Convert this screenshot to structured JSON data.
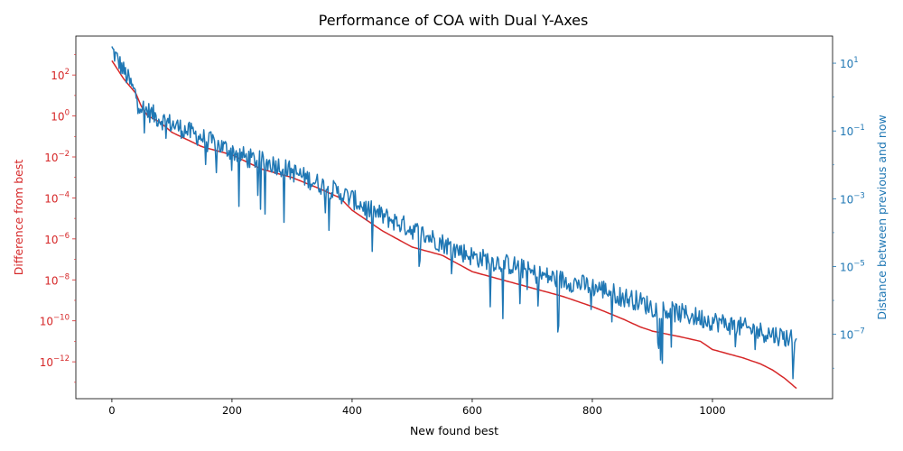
{
  "chart_data": {
    "type": "line",
    "title": "Performance of COA with Dual Y-Axes",
    "xlabel": "New found best",
    "x_range": [
      -60,
      1200
    ],
    "x_ticks": [
      0,
      200,
      400,
      600,
      800,
      1000
    ],
    "x_tick_labels": [
      "0",
      "200",
      "400",
      "600",
      "800",
      "1000"
    ],
    "y_left": {
      "label": "Difference from best",
      "color": "#d62728",
      "scale": "log",
      "exp_range": [
        -13.8,
        3.9
      ],
      "tick_exponents": [
        2,
        0,
        -2,
        -4,
        -6,
        -8,
        -10,
        -12
      ],
      "tick_labels": [
        {
          "base": "10",
          "exp": "2"
        },
        {
          "base": "10",
          "exp": "0"
        },
        {
          "base": "10",
          "exp": "−2"
        },
        {
          "base": "10",
          "exp": "−4"
        },
        {
          "base": "10",
          "exp": "−6"
        },
        {
          "base": "10",
          "exp": "−8"
        },
        {
          "base": "10",
          "exp": "−10"
        },
        {
          "base": "10",
          "exp": "−12"
        }
      ]
    },
    "y_right": {
      "label": "Distance between previous and now",
      "color": "#1f77b4",
      "scale": "log",
      "exp_range": [
        -8.9,
        1.8
      ],
      "tick_exponents": [
        1,
        -1,
        -3,
        -5,
        -7
      ],
      "tick_labels": [
        {
          "base": "10",
          "exp": "1"
        },
        {
          "base": "10",
          "exp": "−1"
        },
        {
          "base": "10",
          "exp": "−3"
        },
        {
          "base": "10",
          "exp": "−5"
        },
        {
          "base": "10",
          "exp": "−7"
        }
      ]
    },
    "series": [
      {
        "name": "Difference from best",
        "axis": "left",
        "color": "#d62728",
        "x": [
          0,
          20,
          40,
          50,
          60,
          80,
          100,
          150,
          200,
          250,
          300,
          350,
          380,
          400,
          450,
          500,
          550,
          600,
          650,
          700,
          750,
          800,
          850,
          880,
          900,
          950,
          980,
          1000,
          1050,
          1080,
          1100,
          1120,
          1140
        ],
        "y_log10": [
          2.7,
          1.8,
          1.1,
          0.4,
          0.0,
          -0.3,
          -0.8,
          -1.5,
          -1.9,
          -2.6,
          -3.0,
          -3.6,
          -4.0,
          -4.6,
          -5.6,
          -6.4,
          -6.8,
          -7.6,
          -8.0,
          -8.4,
          -8.8,
          -9.3,
          -9.9,
          -10.3,
          -10.5,
          -10.8,
          -11.0,
          -11.4,
          -11.8,
          -12.1,
          -12.4,
          -12.8,
          -13.3
        ]
      },
      {
        "name": "Distance between previous and now",
        "axis": "right",
        "color": "#1f77b4",
        "x": [
          0,
          25,
          50,
          75,
          100,
          125,
          150,
          175,
          200,
          225,
          250,
          275,
          300,
          325,
          350,
          375,
          400,
          425,
          450,
          475,
          500,
          525,
          550,
          575,
          600,
          625,
          650,
          675,
          700,
          725,
          750,
          775,
          800,
          825,
          850,
          875,
          900,
          925,
          950,
          975,
          1000,
          1025,
          1050,
          1075,
          1100,
          1125,
          1140
        ],
        "y_log10": [
          1.4,
          0.6,
          -0.3,
          -0.6,
          -0.8,
          -1.0,
          -1.2,
          -1.4,
          -1.6,
          -1.8,
          -1.9,
          -2.0,
          -2.2,
          -2.4,
          -2.6,
          -2.8,
          -3.0,
          -3.3,
          -3.5,
          -3.7,
          -3.9,
          -4.1,
          -4.3,
          -4.5,
          -4.7,
          -4.8,
          -4.9,
          -5.0,
          -5.2,
          -5.3,
          -5.4,
          -5.5,
          -5.6,
          -5.7,
          -5.9,
          -6.0,
          -6.2,
          -6.3,
          -6.4,
          -6.5,
          -6.6,
          -6.7,
          -6.8,
          -6.9,
          -7.0,
          -7.1,
          -7.1
        ],
        "noise_amplitude_log10": 0.6,
        "occasional_dip_log10": 1.5
      }
    ]
  }
}
